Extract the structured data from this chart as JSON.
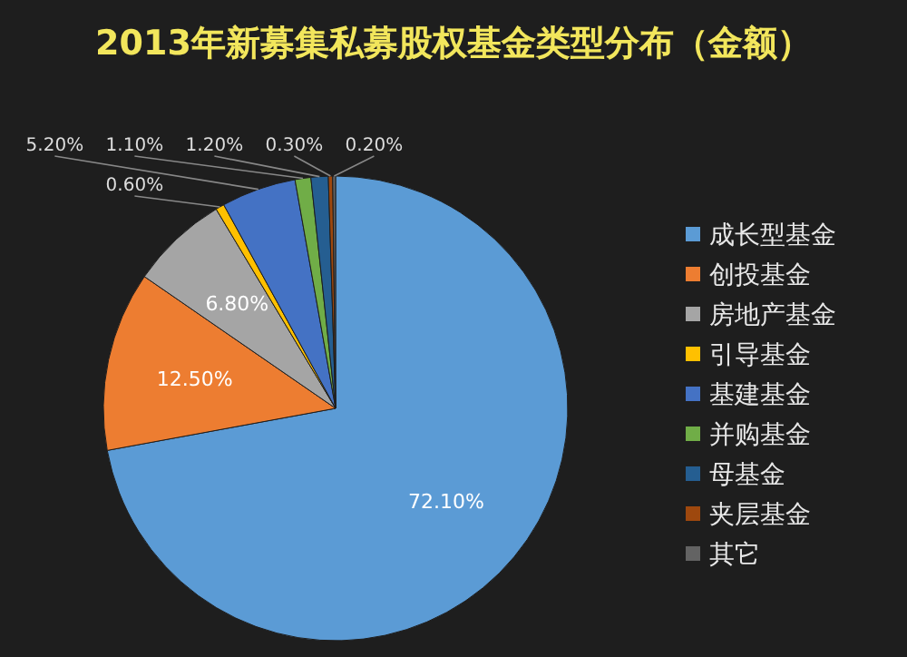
{
  "chart_data": {
    "type": "pie",
    "title": "2013年新募集私募股权基金类型分布（金额）",
    "categories": [
      "成长型基金",
      "创投基金",
      "房地产基金",
      "引导基金",
      "基建基金",
      "并购基金",
      "母基金",
      "夹层基金",
      "其它"
    ],
    "values": [
      72.1,
      12.5,
      6.8,
      0.6,
      5.2,
      1.1,
      1.2,
      0.3,
      0.2
    ],
    "value_labels": [
      "72.10%",
      "12.50%",
      "6.80%",
      "0.60%",
      "5.20%",
      "1.10%",
      "1.20%",
      "0.30%",
      "0.20%"
    ],
    "colors": [
      "#5b9bd5",
      "#ed7d31",
      "#a5a5a5",
      "#ffc000",
      "#4472c4",
      "#70ad47",
      "#255e91",
      "#9e480e",
      "#636363"
    ],
    "legend": "right"
  }
}
